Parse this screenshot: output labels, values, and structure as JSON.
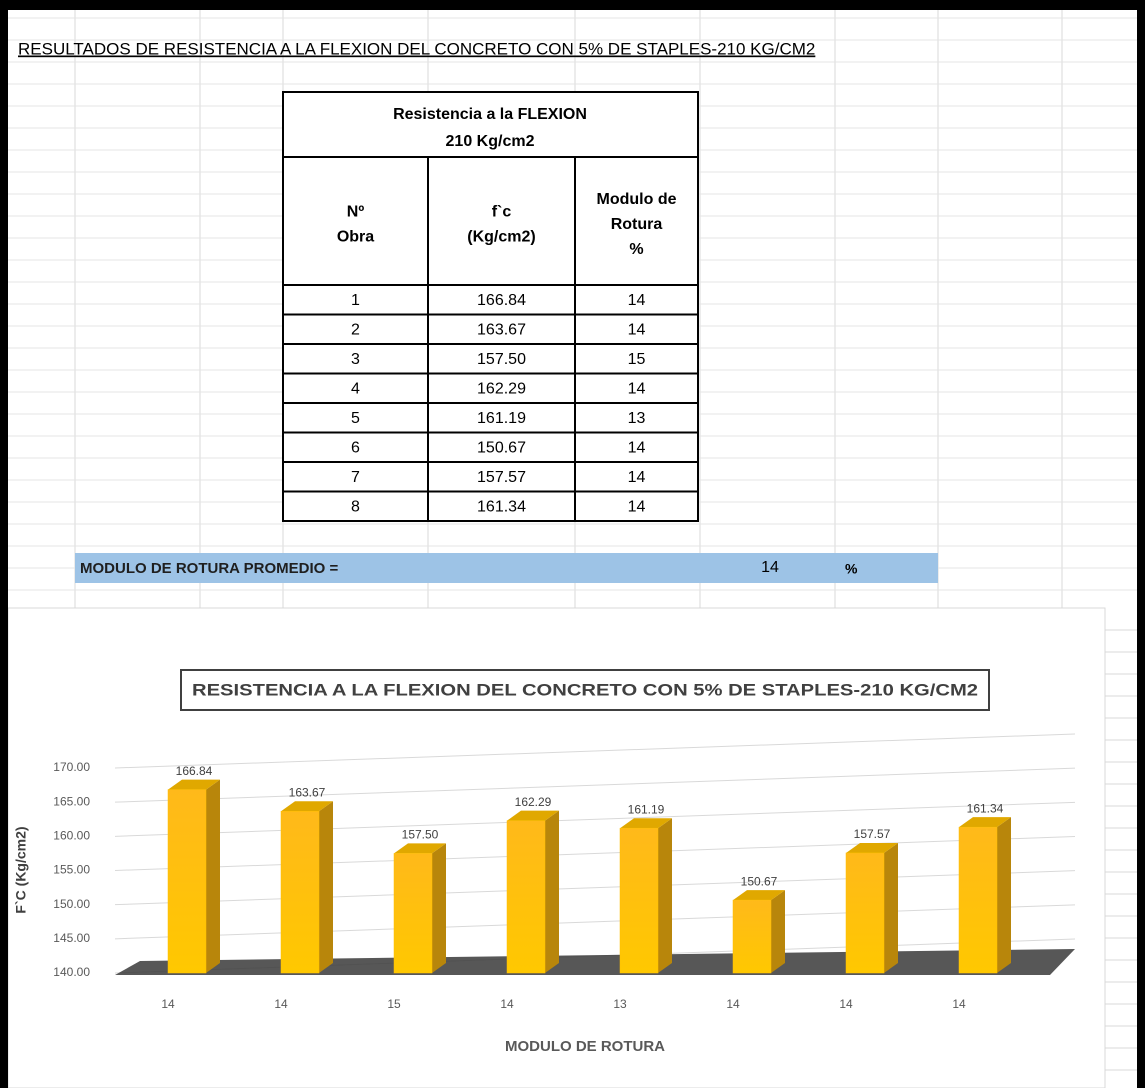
{
  "title": "RESULTADOS DE  RESISTENCIA A LA FLEXION DEL CONCRETO CON 5% DE STAPLES-210 KG/CM2",
  "table": {
    "header": [
      "Resistencia a la FLEXION",
      "210 Kg/cm2"
    ],
    "columns": [
      [
        "Nº",
        "Obra"
      ],
      [
        "f`c",
        "(Kg/cm2)"
      ],
      [
        "Modulo de",
        "Rotura",
        "%"
      ]
    ],
    "rows": [
      [
        "1",
        "166.84",
        "14"
      ],
      [
        "2",
        "163.67",
        "14"
      ],
      [
        "3",
        "157.50",
        "15"
      ],
      [
        "4",
        "162.29",
        "14"
      ],
      [
        "5",
        "161.19",
        "13"
      ],
      [
        "6",
        "150.67",
        "14"
      ],
      [
        "7",
        "157.57",
        "14"
      ],
      [
        "8",
        "161.34",
        "14"
      ]
    ]
  },
  "summary": {
    "label": "MODULO DE ROTURA PROMEDIO  =",
    "value": "14",
    "unit": "%"
  },
  "chart_data": {
    "type": "bar",
    "title": "RESISTENCIA A LA FLEXION DEL CONCRETO CON 5% DE STAPLES-210 KG/CM2",
    "x_label": "MODULO DE ROTURA",
    "y_label": "F`C (Kg/cm2)",
    "categories": [
      "14",
      "14",
      "15",
      "14",
      "13",
      "14",
      "14",
      "14"
    ],
    "values": [
      166.84,
      163.67,
      157.5,
      162.29,
      161.19,
      150.67,
      157.57,
      161.34
    ],
    "value_labels": [
      "166.84",
      "163.67",
      "157.50",
      "162.29",
      "161.19",
      "150.67",
      "157.57",
      "161.34"
    ],
    "color": "#ffc000",
    "ylim": [
      140,
      170
    ],
    "yticks": [
      {
        "value": 140,
        "label": "140.00"
      },
      {
        "value": 145,
        "label": "145.00"
      },
      {
        "value": 150,
        "label": "150.00"
      },
      {
        "value": 155,
        "label": "155.00"
      },
      {
        "value": 160,
        "label": "160.00"
      },
      {
        "value": 165,
        "label": "165.00"
      },
      {
        "value": 170,
        "label": "170.00"
      }
    ],
    "grid": true
  }
}
